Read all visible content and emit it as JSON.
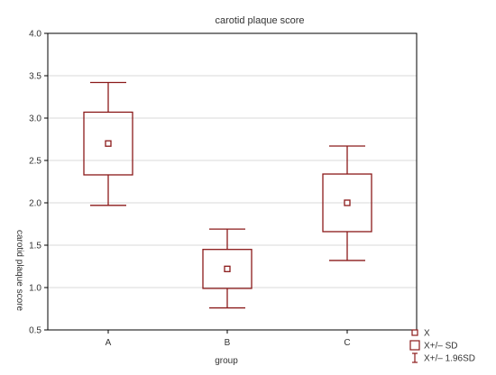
{
  "chart_data": {
    "type": "box",
    "title": "carotid plaque score",
    "xlabel": "group",
    "ylabel": "carotid plaque score",
    "ylim": [
      0.5,
      4.0
    ],
    "yticks": [
      "0.5",
      "1.0",
      "1.5",
      "2.0",
      "2.5",
      "3.0",
      "3.5",
      "4.0"
    ],
    "categories": [
      "A",
      "B",
      "C"
    ],
    "grid": true,
    "legend_position": "bottom-right",
    "series": [
      {
        "group": "A",
        "mean": 2.7,
        "sd_low": 2.33,
        "sd_high": 3.07,
        "ci_low": 1.97,
        "ci_high": 3.42
      },
      {
        "group": "B",
        "mean": 1.22,
        "sd_low": 0.99,
        "sd_high": 1.45,
        "ci_low": 0.76,
        "ci_high": 1.69
      },
      {
        "group": "C",
        "mean": 2.0,
        "sd_low": 1.66,
        "sd_high": 2.34,
        "ci_low": 1.32,
        "ci_high": 2.67
      }
    ],
    "legend": [
      {
        "symbol": "mean-marker",
        "label": "X"
      },
      {
        "symbol": "box",
        "label": "X+/– SD"
      },
      {
        "symbol": "whisker",
        "label": "X+/– 1.96SD"
      }
    ],
    "colors": {
      "series": "#8b1a1a",
      "grid": "#d9d9d9",
      "frame": "#000000",
      "text": "#333333"
    }
  }
}
